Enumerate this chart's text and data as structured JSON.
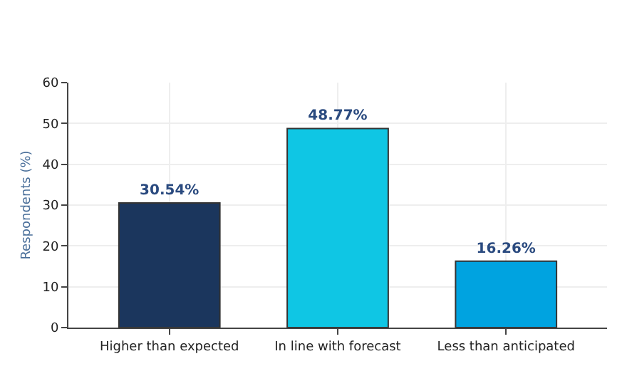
{
  "chart_data": {
    "type": "bar",
    "ylabel": "Respondents (%)",
    "categories": [
      "Higher than expected",
      "In line with forecast",
      "Less than anticipated"
    ],
    "values": [
      30.54,
      48.77,
      16.26
    ],
    "colors": [
      "#1b365d",
      "#0fc6e4",
      "#00a3e0"
    ],
    "value_labels": [
      "30.54%",
      "48.77%",
      "16.26%"
    ],
    "ylim": [
      0,
      60
    ],
    "yticks": [
      0,
      10,
      20,
      30,
      40,
      50,
      60
    ],
    "grid": true
  }
}
